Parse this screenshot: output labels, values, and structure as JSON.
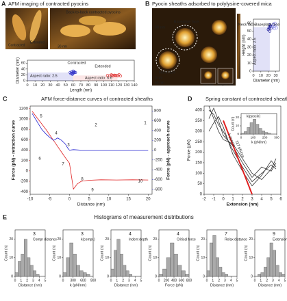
{
  "figure_e": {
    "panel_label": "E",
    "title": "Histograms of measurement distributions"
  },
  "chart_data": [
    {
      "type": "scatter",
      "panel_label": "A",
      "title": "AFM imaging of contracted pyocins",
      "xlabel": "Length (nm)",
      "ylabel": "Diameter (nm)",
      "image_labels": [
        "Back-to-back contracted pyocins",
        "Contracted",
        "Extended",
        "30 nm"
      ],
      "annotations": [
        "Aspect ratio: 2.5",
        "Aspect ratio: 6.6"
      ],
      "xlim": [
        0,
        140
      ],
      "xticks": [
        0,
        10,
        20,
        30,
        40,
        50,
        60,
        70,
        80,
        90,
        100,
        110,
        120,
        130,
        140
      ],
      "ylim": [
        0,
        70
      ],
      "yticks": [
        0,
        20,
        40,
        60
      ],
      "series": [
        {
          "name": "Contracted",
          "color": "#3535c8",
          "x": [
            56,
            58,
            59,
            60,
            61,
            62,
            57,
            60,
            58,
            63,
            59,
            61
          ],
          "values": [
            28,
            30,
            25,
            27,
            31,
            29,
            24,
            33,
            26,
            28,
            22,
            27
          ]
        },
        {
          "name": "Extended",
          "color": "#e03030",
          "x": [
            105,
            108,
            110,
            112,
            114,
            116,
            118,
            120,
            122,
            111,
            115,
            119
          ],
          "values": [
            18,
            17,
            20,
            16,
            19,
            18,
            17,
            21,
            16,
            19,
            18,
            17
          ]
        }
      ]
    },
    {
      "type": "scatter",
      "panel_label": "B",
      "title": "Pyocin sheaths adsorbed to polylysine-covered mica",
      "xlabel": "Diameter (nm)",
      "ylabel": "Height (nm)",
      "image_labels": [
        "Baseplate face",
        "Neck face",
        "60 nm",
        "0 nm",
        "50 nm",
        "Neck face",
        "Baseplate face"
      ],
      "annotations": [
        "Aspect ratio: 2.5"
      ],
      "xlim": [
        0,
        35
      ],
      "xticks": [
        0,
        10,
        20,
        30
      ],
      "ylim": [
        0,
        65
      ],
      "yticks": [
        0,
        10,
        20,
        30,
        40,
        50,
        60
      ],
      "series": [
        {
          "name": "Neck face",
          "color": "#1a1a9a",
          "x": [
            20,
            21,
            22,
            23,
            24,
            22,
            21,
            23
          ],
          "values": [
            52,
            55,
            50,
            57,
            54,
            58,
            53,
            56
          ]
        },
        {
          "name": "Baseplate face",
          "color": "#8f8fee",
          "x": [
            26,
            27,
            28,
            29,
            30,
            28,
            27,
            31
          ],
          "values": [
            55,
            58,
            53,
            60,
            57,
            56,
            59,
            54
          ]
        }
      ]
    },
    {
      "type": "line",
      "panel_label": "C",
      "title": "AFM force-distance curves of contracted sheaths",
      "xlabel": "Distance (nm)",
      "ylabel": "Force (pN) - retraction curve",
      "y2label": "Force (pN) - approach curve",
      "ylabel_color": "#e02020",
      "y2label_color": "#2020d0",
      "annotations": [
        "1",
        "2",
        "3",
        "4",
        "5",
        "6",
        "7",
        "8",
        "9",
        "10"
      ],
      "xlim": [
        -10,
        21
      ],
      "xticks": [
        -10,
        -5,
        0,
        5,
        10,
        15,
        20
      ],
      "ylim": [
        -450,
        1250
      ],
      "yticks": [
        -400,
        -200,
        0,
        200,
        400,
        600,
        800,
        1000,
        1200
      ],
      "y2lim": [
        -900,
        900
      ],
      "y2ticks": [
        -800,
        -600,
        -400,
        -200,
        0,
        200,
        400,
        600,
        800
      ],
      "series": [
        {
          "color": "#e02020",
          "x": [
            -9.5,
            -8,
            -6,
            -4,
            -2,
            -1,
            0,
            0.5,
            1,
            2,
            3,
            5,
            8,
            12,
            16,
            20
          ],
          "values": [
            1150,
            1000,
            800,
            580,
            360,
            250,
            150,
            -100,
            -350,
            -250,
            -200,
            -180,
            -170,
            -175,
            -170,
            -175
          ]
        },
        {
          "color": "#2020d0",
          "axis": "y2",
          "x": [
            -9.5,
            -8,
            -7,
            -6,
            -5,
            -4,
            -3,
            -2,
            -1,
            -0.5,
            0,
            1,
            3,
            5,
            10,
            15,
            20
          ],
          "values": [
            750,
            550,
            420,
            330,
            260,
            200,
            250,
            200,
            120,
            50,
            0,
            10,
            0,
            0,
            0,
            0,
            0
          ]
        }
      ]
    },
    {
      "type": "line",
      "panel_label": "D",
      "title": "Spring constant of contracted sheath",
      "xlabel": "Extension (nm)",
      "ylabel": "Force (pN)",
      "annotations": [
        "k pyocin",
        "117 pN/nm"
      ],
      "xlim": [
        -2,
        6
      ],
      "xticks": [
        -2,
        -1,
        0,
        1,
        2,
        3,
        4,
        5,
        6
      ],
      "ylim": [
        0,
        420
      ],
      "yticks": [
        0,
        50,
        100,
        150,
        200,
        250,
        300,
        350,
        400
      ],
      "series": [
        {
          "color": "#333333",
          "x": [
            -1.5,
            -1,
            -0.5,
            0,
            1,
            2,
            3,
            4,
            5,
            5.5
          ],
          "values": [
            400,
            380,
            330,
            300,
            210,
            130,
            60,
            100,
            140,
            120
          ]
        },
        {
          "color": "#333333",
          "x": [
            -1.5,
            -1,
            -0.5,
            0,
            1,
            2,
            3,
            4,
            5,
            5.5
          ],
          "values": [
            360,
            410,
            350,
            280,
            230,
            150,
            80,
            130,
            110,
            150
          ]
        },
        {
          "color": "#333333",
          "x": [
            -1.5,
            -1,
            -0.5,
            0,
            1,
            2,
            3,
            4,
            5,
            5.5
          ],
          "values": [
            300,
            340,
            370,
            320,
            190,
            110,
            40,
            90,
            160,
            130
          ]
        },
        {
          "color": "#333333",
          "x": [
            -1.5,
            -1,
            -0.5,
            0,
            1,
            2,
            3,
            4,
            5,
            5.5
          ],
          "values": [
            420,
            360,
            300,
            260,
            240,
            170,
            100,
            70,
            120,
            170
          ]
        },
        {
          "color": "#e02020",
          "x": [
            0,
            3
          ],
          "values": [
            351,
            0
          ]
        }
      ]
    },
    {
      "type": "histogram",
      "title": "k(pyocin)",
      "xlabel": "k (pN/nm)",
      "ylabel": "Count (n)",
      "color": "#aaaaaa",
      "xlim": [
        0,
        300
      ],
      "xticks": [
        0,
        100,
        200,
        300
      ],
      "ylim": [
        0,
        25
      ],
      "yticks": [
        0,
        10,
        20
      ],
      "bins": [
        0,
        25,
        50,
        75,
        100,
        125,
        150,
        175,
        200,
        225,
        250
      ],
      "values": [
        1,
        3,
        8,
        14,
        18,
        12,
        7,
        4,
        2,
        1
      ]
    },
    {
      "type": "histogram",
      "title": "3",
      "subtitle": "Compr distance",
      "xlabel": "Distance (nm)",
      "ylabel": "Count (n)",
      "color": "#aaaaaa",
      "xlim": [
        0,
        5
      ],
      "xticks": [
        0,
        1,
        2,
        3,
        4,
        5
      ],
      "ylim": [
        0,
        25
      ],
      "yticks": [
        0,
        10,
        20
      ],
      "bins": [
        0,
        0.5,
        1,
        1.5,
        2,
        2.5,
        3,
        3.5,
        4,
        4.5,
        5
      ],
      "values": [
        2,
        8,
        12,
        20,
        10,
        6,
        3,
        1,
        0,
        0
      ]
    },
    {
      "type": "histogram",
      "title": "3",
      "subtitle": "k(compr.)",
      "xlabel": "k (pN/nm)",
      "ylabel": "Count (n)",
      "color": "#aaaaaa",
      "xlim": [
        0,
        900
      ],
      "xticks": [
        0,
        300,
        600,
        900
      ],
      "ylim": [
        0,
        25
      ],
      "yticks": [
        0,
        10,
        20
      ],
      "bins": [
        0,
        100,
        200,
        300,
        400,
        500,
        600,
        700,
        800,
        900
      ],
      "values": [
        2,
        10,
        18,
        12,
        6,
        3,
        2,
        1,
        0
      ]
    },
    {
      "type": "histogram",
      "title": "4",
      "subtitle": "Indent depth",
      "xlabel": "Distance (nm)",
      "ylabel": "Count (n)",
      "color": "#aaaaaa",
      "xlim": [
        0,
        5
      ],
      "xticks": [
        0,
        1,
        2,
        3,
        4,
        5
      ],
      "ylim": [
        0,
        25
      ],
      "yticks": [
        0,
        10,
        20
      ],
      "bins": [
        0,
        0.5,
        1,
        1.5,
        2,
        2.5,
        3,
        3.5,
        4,
        4.5,
        5
      ],
      "values": [
        4,
        14,
        20,
        12,
        6,
        3,
        1,
        0,
        0,
        0
      ]
    },
    {
      "type": "histogram",
      "title": "4",
      "subtitle": "Critical force",
      "xlabel": "Force (pN)",
      "ylabel": "Count (n)",
      "color": "#aaaaaa",
      "xlim": [
        0,
        800
      ],
      "xticks": [
        0,
        200,
        400,
        600,
        800
      ],
      "ylim": [
        0,
        25
      ],
      "yticks": [
        0,
        10,
        20
      ],
      "bins": [
        0,
        100,
        200,
        300,
        400,
        500,
        600,
        700,
        800
      ],
      "values": [
        1,
        4,
        10,
        18,
        12,
        6,
        3,
        1
      ]
    },
    {
      "type": "histogram",
      "title": "7",
      "subtitle": "Relax distance",
      "xlabel": "Distance (nm)",
      "ylabel": "Count (n)",
      "color": "#aaaaaa",
      "xlim": [
        0,
        5
      ],
      "xticks": [
        0,
        1,
        2,
        3,
        4,
        5
      ],
      "ylim": [
        0,
        25
      ],
      "yticks": [
        0,
        10,
        20
      ],
      "bins": [
        0,
        0.5,
        1,
        1.5,
        2,
        2.5,
        3,
        3.5,
        4,
        4.5,
        5
      ],
      "values": [
        3,
        18,
        22,
        10,
        5,
        2,
        1,
        0,
        0,
        0
      ]
    },
    {
      "type": "histogram",
      "title": "9",
      "subtitle": "Extension",
      "xlabel": "Distance (nm)",
      "ylabel": "Count (n)",
      "color": "#aaaaaa",
      "xlim": [
        0,
        5
      ],
      "xticks": [
        0,
        1,
        2,
        3,
        4,
        5
      ],
      "ylim": [
        0,
        25
      ],
      "yticks": [
        0,
        10,
        20
      ],
      "bins": [
        0,
        0.5,
        1,
        1.5,
        2,
        2.5,
        3,
        3.5,
        4,
        4.5,
        5
      ],
      "values": [
        0,
        1,
        2,
        5,
        10,
        18,
        14,
        6,
        2,
        1
      ]
    }
  ]
}
